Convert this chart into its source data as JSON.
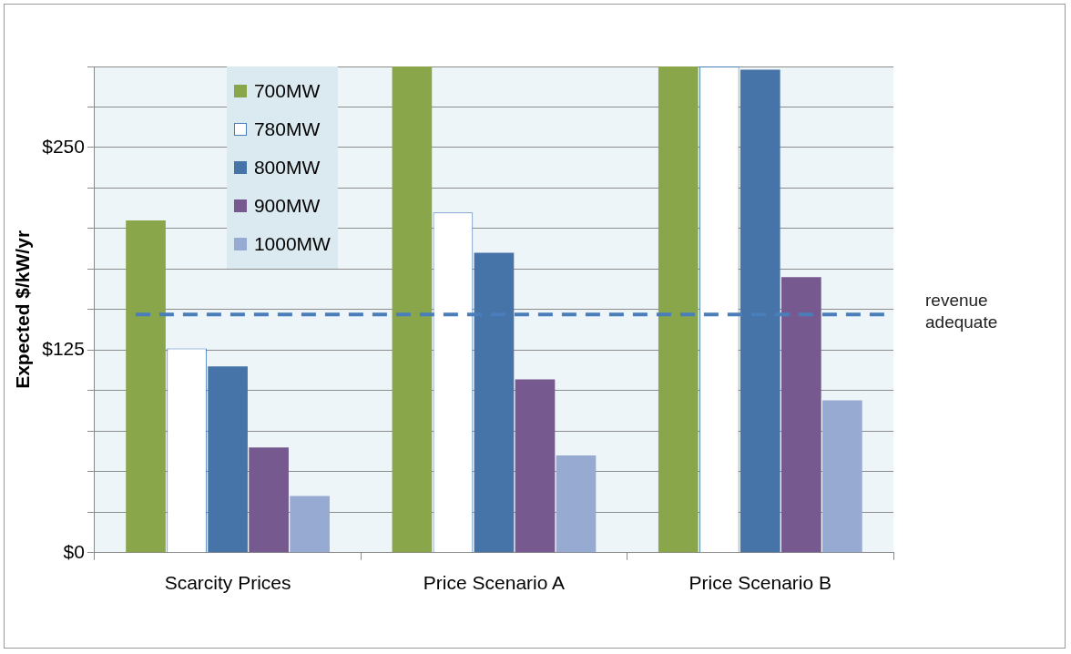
{
  "chart_data": {
    "type": "bar",
    "ylabel": "Expected $/kW/yr",
    "categories": [
      "Scarcity Prices",
      "Price Scenario A",
      "Price Scenario B"
    ],
    "series": [
      {
        "name": "700MW",
        "color": "#8aa64b",
        "values": [
          205,
          300,
          300
        ]
      },
      {
        "name": "780MW",
        "color": "#ffffff",
        "values": [
          126,
          210,
          300
        ]
      },
      {
        "name": "800MW",
        "color": "#4673a8",
        "values": [
          115,
          185,
          298
        ]
      },
      {
        "name": "900MW",
        "color": "#765a8f",
        "values": [
          65,
          107,
          170
        ]
      },
      {
        "name": "1000MW",
        "color": "#97abd2",
        "values": [
          35,
          60,
          94
        ]
      }
    ],
    "ylim": [
      0,
      300
    ],
    "yticks": [
      {
        "value": 0,
        "label": "$0"
      },
      {
        "value": 25,
        "label": null
      },
      {
        "value": 50,
        "label": null
      },
      {
        "value": 75,
        "label": null
      },
      {
        "value": 100,
        "label": null
      },
      {
        "value": 125,
        "label": "$125"
      },
      {
        "value": 150,
        "label": null
      },
      {
        "value": 175,
        "label": null
      },
      {
        "value": 200,
        "label": null
      },
      {
        "value": 225,
        "label": null
      },
      {
        "value": 250,
        "label": "$250"
      },
      {
        "value": 275,
        "label": null
      },
      {
        "value": 300,
        "label": null
      }
    ],
    "ref_lines": [
      {
        "axis": "y",
        "value": 147,
        "label": "revenue adequate",
        "color": "#4a7ebb",
        "line_style": "dashed"
      }
    ],
    "grid": "y",
    "legend": "top left"
  }
}
